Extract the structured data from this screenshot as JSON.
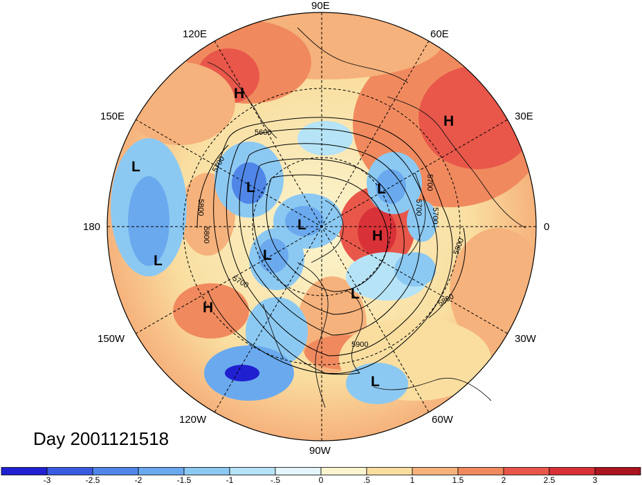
{
  "lon_labels": {
    "e90": "90E",
    "e120": "120E",
    "e60": "60E",
    "e150": "150E",
    "e30": "30E",
    "w180": "180",
    "e0": "0",
    "w150": "150W",
    "w30": "30W",
    "w120": "120W",
    "w60": "60W",
    "w90": "90W"
  },
  "day_label": "Day 2001121518",
  "centers": [
    {
      "type": "H",
      "label": "H"
    },
    {
      "type": "H",
      "label": "H"
    },
    {
      "type": "H",
      "label": "H"
    },
    {
      "type": "H",
      "label": "H"
    },
    {
      "type": "L",
      "label": "L"
    },
    {
      "type": "L",
      "label": "L"
    },
    {
      "type": "L",
      "label": "L"
    },
    {
      "type": "L",
      "label": "L"
    },
    {
      "type": "L",
      "label": "L"
    },
    {
      "type": "L",
      "label": "L"
    },
    {
      "type": "L",
      "label": "L"
    },
    {
      "type": "L",
      "label": "L"
    }
  ],
  "contour_labels": [
    "5600",
    "5700",
    "5800",
    "5800",
    "5700",
    "5700",
    "5800",
    "5800",
    "5700",
    "5900",
    "5700"
  ],
  "colorbar": {
    "ticks": [
      "-3",
      "-2.5",
      "-2",
      "-1.5",
      "-1",
      "-.5",
      "0",
      ".5",
      "1",
      "1.5",
      "2",
      "2.5",
      "3"
    ],
    "colors": [
      "#2020d0",
      "#3a5be0",
      "#4f86e8",
      "#6aa9ee",
      "#8cc9f2",
      "#b6e3f6",
      "#e3f6fb",
      "#fbf5cf",
      "#f9dea0",
      "#f6b27c",
      "#f08a5e",
      "#e8574a",
      "#d83238",
      "#a8151f"
    ]
  }
}
